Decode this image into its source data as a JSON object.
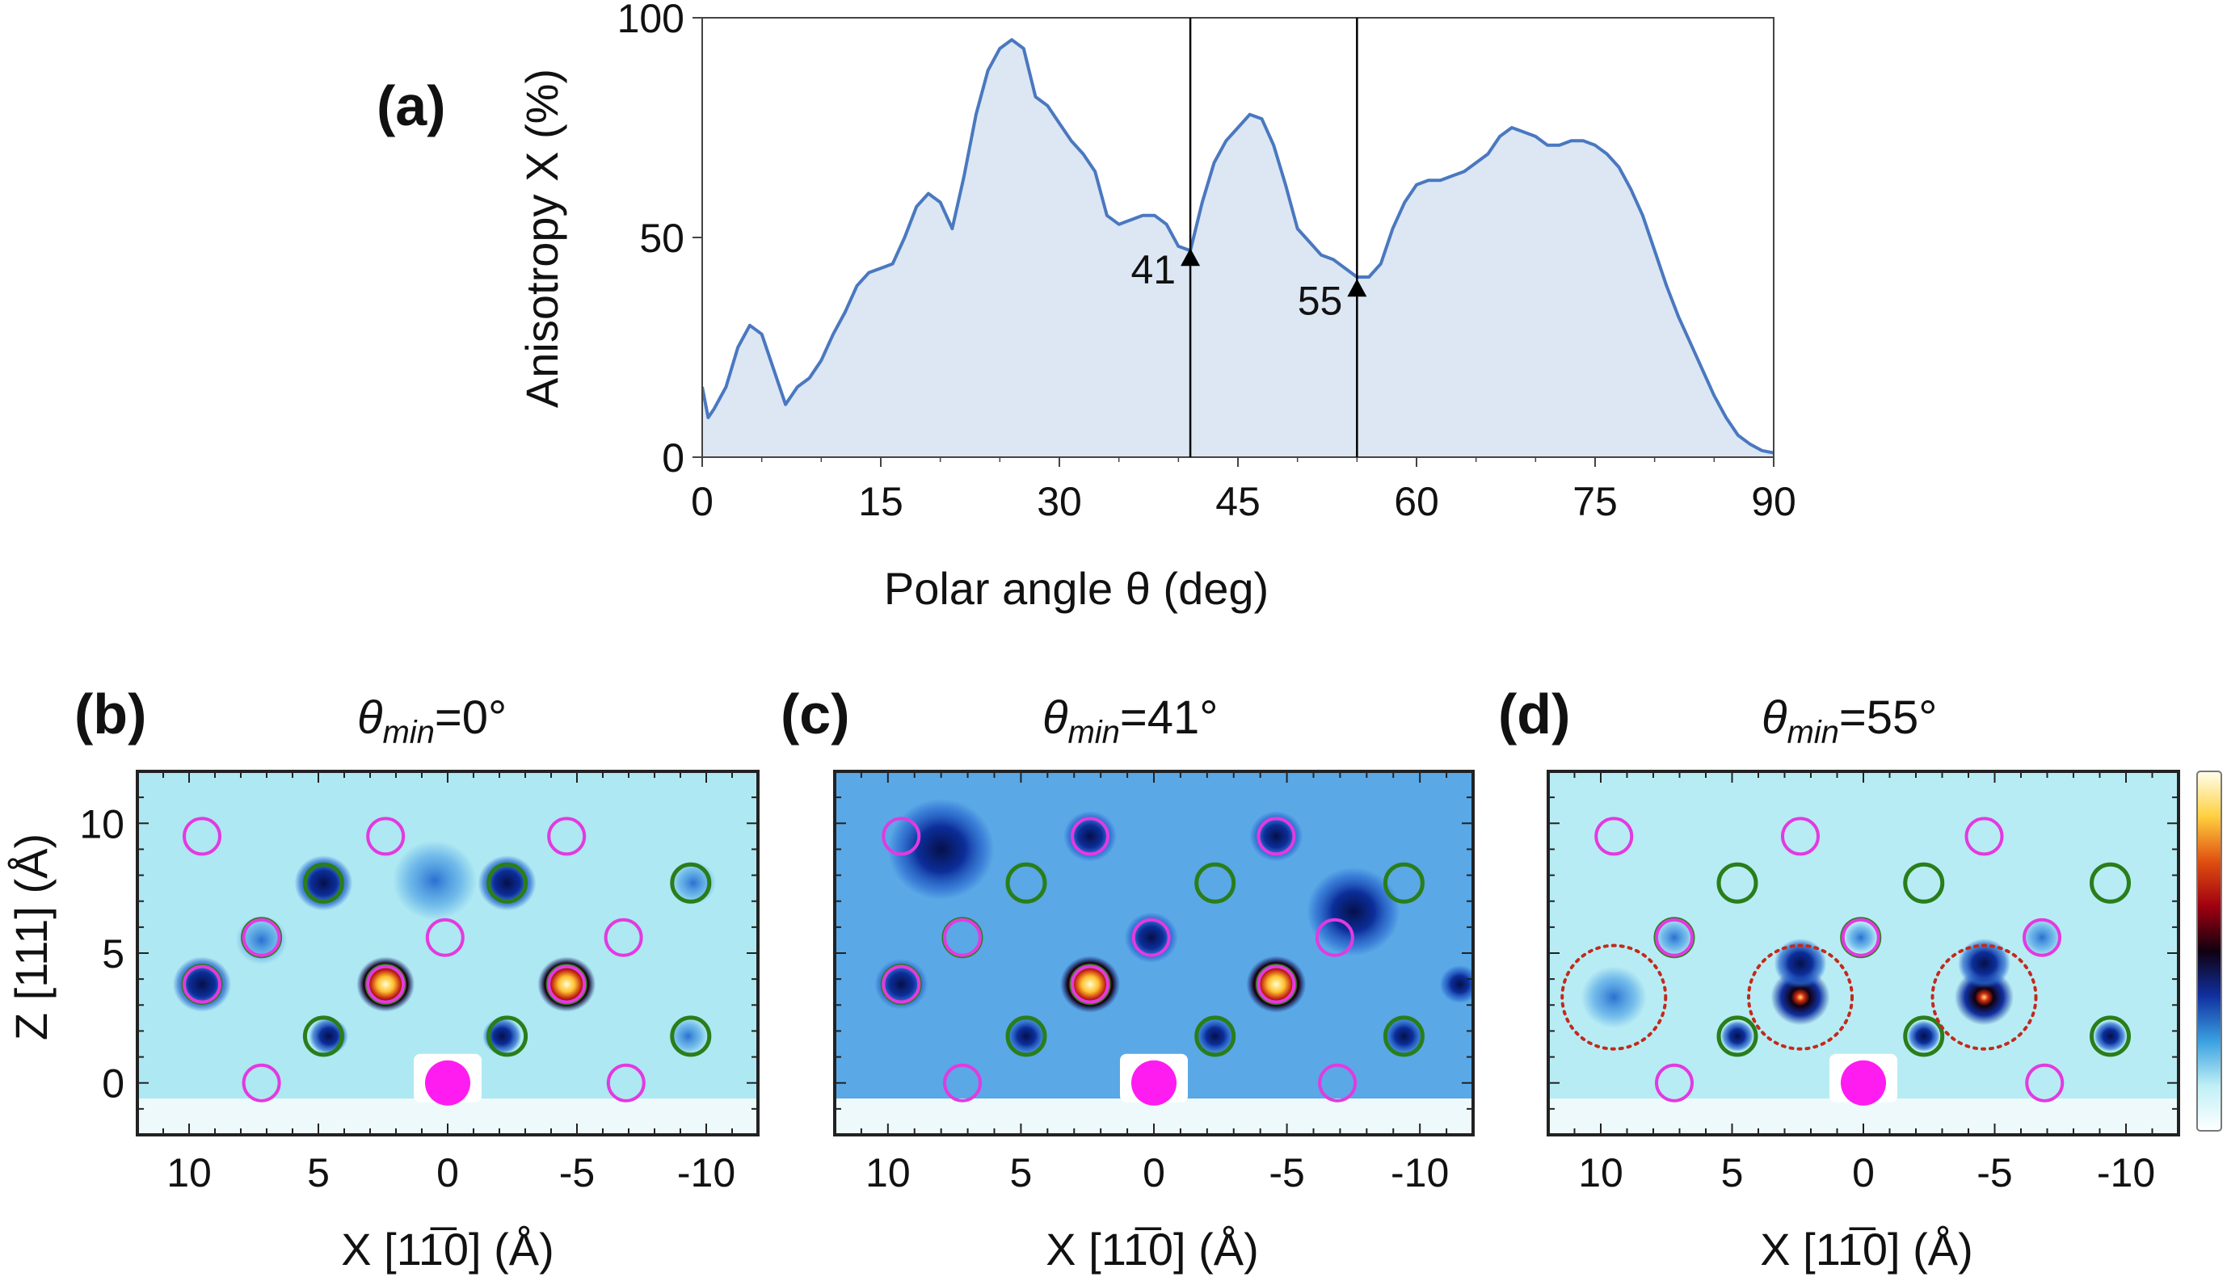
{
  "chart_data": [
    {
      "type": "area",
      "panel_label": "(a)",
      "xlabel": "Polar angle θ (deg)",
      "ylabel": "Anisotropy X (%)",
      "xlim": [
        0,
        90
      ],
      "ylim": [
        0,
        100
      ],
      "xticks": [
        "0",
        "15",
        "30",
        "45",
        "60",
        "75",
        "90"
      ],
      "yticks": [
        "0",
        "50",
        "100"
      ],
      "grid": false,
      "color": "#4a78c0",
      "fill": "#dce7f3",
      "x": [
        0,
        0.5,
        1,
        2,
        3,
        4,
        5,
        6,
        7,
        8,
        9,
        10,
        11,
        12,
        13,
        14,
        15,
        16,
        17,
        18,
        19,
        20,
        21,
        22,
        23,
        24,
        25,
        26,
        27,
        28,
        29,
        30,
        31,
        32,
        33,
        34,
        35,
        36,
        37,
        38,
        39,
        40,
        41,
        42,
        43,
        44,
        45,
        46,
        47,
        48,
        49,
        50,
        51,
        52,
        53,
        54,
        55,
        56,
        57,
        58,
        59,
        60,
        61,
        62,
        63,
        64,
        65,
        66,
        67,
        68,
        69,
        70,
        71,
        72,
        73,
        74,
        75,
        76,
        77,
        78,
        79,
        80,
        81,
        82,
        83,
        84,
        85,
        86,
        87,
        88,
        89,
        90
      ],
      "y": [
        16,
        9,
        11,
        16,
        25,
        30,
        28,
        20,
        12,
        16,
        18,
        22,
        28,
        33,
        39,
        42,
        43,
        44,
        50,
        57,
        60,
        58,
        52,
        64,
        78,
        88,
        93,
        95,
        93,
        82,
        80,
        76,
        72,
        69,
        65,
        55,
        53,
        54,
        55,
        55,
        53,
        48,
        47,
        58,
        67,
        72,
        75,
        78,
        77,
        71,
        62,
        52,
        49,
        46,
        45,
        43,
        41,
        41,
        44,
        52,
        58,
        62,
        63,
        63,
        64,
        65,
        67,
        69,
        73,
        75,
        74,
        73,
        71,
        71,
        72,
        72,
        71,
        69,
        66,
        61,
        55,
        47,
        39,
        32,
        26,
        20,
        14,
        9,
        5,
        3,
        1.5,
        1
      ],
      "annotations": [
        {
          "text": "41",
          "x": 41,
          "y": 45
        },
        {
          "text": "55",
          "x": 55,
          "y": 38
        }
      ]
    },
    {
      "type": "heatmap",
      "panel_label": "(b)",
      "title_symbol": "θ",
      "title_sub": "min",
      "title_value": "=0°",
      "xlabel": "X [11̅0] (Å)",
      "ylabel": "Z [111] (Å)",
      "xticks": [
        "10",
        "5",
        "0",
        "-5",
        "-10"
      ],
      "yticks": [
        "0",
        "5",
        "10"
      ],
      "xlim": [
        12,
        -12
      ],
      "ylim": [
        -2,
        12
      ],
      "background": "#aee8f2",
      "blobs": [
        {
          "x": 9.5,
          "z": 3.8,
          "r": 0.9,
          "kind": "dark"
        },
        {
          "x": 4.8,
          "z": 7.7,
          "r": 0.9,
          "kind": "dark"
        },
        {
          "x": 2.4,
          "z": 3.8,
          "r": 0.9,
          "kind": "hot"
        },
        {
          "x": -2.3,
          "z": 7.7,
          "r": 0.9,
          "kind": "dark"
        },
        {
          "x": -4.6,
          "z": 3.8,
          "r": 0.9,
          "kind": "hot"
        },
        {
          "x": 4.6,
          "z": 1.8,
          "r": 0.6,
          "kind": "dark"
        },
        {
          "x": -2.1,
          "z": 1.8,
          "r": 0.6,
          "kind": "dark"
        },
        {
          "x": 0.5,
          "z": 7.8,
          "r": 1.3,
          "kind": "mid"
        },
        {
          "x": -9.5,
          "z": 7.7,
          "r": 0.7,
          "kind": "mid"
        },
        {
          "x": 7.2,
          "z": 5.5,
          "r": 0.8,
          "kind": "mid"
        },
        {
          "x": -9.3,
          "z": 1.8,
          "r": 0.6,
          "kind": "mid"
        }
      ],
      "magenta_circles": [
        [
          9.5,
          9.5
        ],
        [
          2.4,
          9.5
        ],
        [
          -4.6,
          9.5
        ],
        [
          7.2,
          5.6
        ],
        [
          0.1,
          5.6
        ],
        [
          -6.8,
          5.6
        ],
        [
          9.5,
          3.8
        ],
        [
          2.4,
          3.8
        ],
        [
          -4.6,
          3.8
        ],
        [
          7.2,
          0
        ],
        [
          -6.9,
          0
        ]
      ],
      "green_circles": [
        [
          4.8,
          7.7
        ],
        [
          -2.3,
          7.7
        ],
        [
          -9.4,
          7.7
        ],
        [
          7.2,
          5.6
        ],
        [
          9.5,
          3.8
        ],
        [
          2.4,
          3.8
        ],
        [
          -4.6,
          3.8
        ],
        [
          4.8,
          1.8
        ],
        [
          -2.3,
          1.8
        ],
        [
          -9.4,
          1.8
        ]
      ],
      "dotted_circles": [],
      "emitter": [
        0,
        0
      ]
    },
    {
      "type": "heatmap",
      "panel_label": "(c)",
      "title_symbol": "θ",
      "title_sub": "min",
      "title_value": "=41°",
      "xlabel": "X [11̅0] (Å)",
      "ylabel": "",
      "xticks": [
        "10",
        "5",
        "0",
        "-5",
        "-10"
      ],
      "yticks": [],
      "xlim": [
        12,
        -12
      ],
      "ylim": [
        -2,
        12
      ],
      "background": "#5aa8e6",
      "blobs": [
        {
          "x": 9.5,
          "z": 3.8,
          "r": 0.8,
          "kind": "dark"
        },
        {
          "x": 2.4,
          "z": 3.8,
          "r": 0.9,
          "kind": "hot"
        },
        {
          "x": -4.6,
          "z": 3.8,
          "r": 0.9,
          "kind": "hot"
        },
        {
          "x": 2.4,
          "z": 9.5,
          "r": 0.8,
          "kind": "dark"
        },
        {
          "x": -4.6,
          "z": 9.5,
          "r": 0.8,
          "kind": "dark"
        },
        {
          "x": 8.0,
          "z": 9.0,
          "r": 1.6,
          "kind": "dark"
        },
        {
          "x": -7.5,
          "z": 6.6,
          "r": 1.4,
          "kind": "dark"
        },
        {
          "x": -11.5,
          "z": 3.8,
          "r": 0.6,
          "kind": "dark"
        },
        {
          "x": 0.1,
          "z": 5.6,
          "r": 0.8,
          "kind": "dark"
        },
        {
          "x": 4.8,
          "z": 1.8,
          "r": 0.6,
          "kind": "dark"
        },
        {
          "x": -2.3,
          "z": 1.8,
          "r": 0.6,
          "kind": "dark"
        },
        {
          "x": -9.4,
          "z": 1.8,
          "r": 0.6,
          "kind": "dark"
        }
      ],
      "magenta_circles": [
        [
          9.5,
          9.5
        ],
        [
          2.4,
          9.5
        ],
        [
          -4.6,
          9.5
        ],
        [
          7.2,
          5.6
        ],
        [
          0.1,
          5.6
        ],
        [
          -6.8,
          5.6
        ],
        [
          9.5,
          3.8
        ],
        [
          2.4,
          3.8
        ],
        [
          -4.6,
          3.8
        ],
        [
          7.2,
          0
        ],
        [
          -6.9,
          0
        ]
      ],
      "green_circles": [
        [
          4.8,
          7.7
        ],
        [
          -2.3,
          7.7
        ],
        [
          -9.4,
          7.7
        ],
        [
          7.2,
          5.6
        ],
        [
          9.5,
          3.8
        ],
        [
          2.4,
          3.8
        ],
        [
          -4.6,
          3.8
        ],
        [
          4.8,
          1.8
        ],
        [
          -2.3,
          1.8
        ],
        [
          -9.4,
          1.8
        ]
      ],
      "dotted_circles": [],
      "emitter": [
        0,
        0
      ]
    },
    {
      "type": "heatmap",
      "panel_label": "(d)",
      "title_symbol": "θ",
      "title_sub": "min",
      "title_value": "=55°",
      "xlabel": "X [11̅0] (Å)",
      "ylabel": "",
      "xticks": [
        "10",
        "5",
        "0",
        "-5",
        "-10"
      ],
      "yticks": [],
      "xlim": [
        12,
        -12
      ],
      "ylim": [
        -2,
        12
      ],
      "background": "#b8ecf4",
      "blobs": [
        {
          "x": 2.4,
          "z": 3.3,
          "r": 0.9,
          "kind": "hotsmall"
        },
        {
          "x": -4.6,
          "z": 3.3,
          "r": 0.9,
          "kind": "hotsmall"
        },
        {
          "x": 9.5,
          "z": 3.3,
          "r": 1.0,
          "kind": "mid"
        },
        {
          "x": 2.4,
          "z": 4.6,
          "r": 0.8,
          "kind": "dark"
        },
        {
          "x": -4.6,
          "z": 4.6,
          "r": 0.8,
          "kind": "dark"
        },
        {
          "x": 4.8,
          "z": 1.8,
          "r": 0.5,
          "kind": "dark"
        },
        {
          "x": -2.3,
          "z": 1.8,
          "r": 0.5,
          "kind": "dark"
        },
        {
          "x": -9.4,
          "z": 1.8,
          "r": 0.5,
          "kind": "dark"
        },
        {
          "x": 7.2,
          "z": 5.6,
          "r": 0.6,
          "kind": "mid"
        },
        {
          "x": 0.1,
          "z": 5.6,
          "r": 0.5,
          "kind": "mid"
        },
        {
          "x": -6.8,
          "z": 5.6,
          "r": 0.6,
          "kind": "mid"
        }
      ],
      "magenta_circles": [
        [
          9.5,
          9.5
        ],
        [
          2.4,
          9.5
        ],
        [
          -4.6,
          9.5
        ],
        [
          7.2,
          5.6
        ],
        [
          0.1,
          5.6
        ],
        [
          -6.8,
          5.6
        ],
        [
          7.2,
          0
        ],
        [
          -6.9,
          0
        ]
      ],
      "green_circles": [
        [
          4.8,
          7.7
        ],
        [
          -2.3,
          7.7
        ],
        [
          -9.4,
          7.7
        ],
        [
          7.2,
          5.6
        ],
        [
          0.1,
          5.6
        ],
        [
          4.8,
          1.8
        ],
        [
          -2.3,
          1.8
        ],
        [
          -9.4,
          1.8
        ]
      ],
      "dotted_circles": [
        [
          9.5,
          3.3
        ],
        [
          2.4,
          3.3
        ],
        [
          -4.6,
          3.3
        ]
      ],
      "emitter": [
        0,
        0
      ]
    }
  ],
  "colorbar": {
    "stops": [
      "#ffffee",
      "#ffd040",
      "#e05010",
      "#a00010",
      "#100010",
      "#1030a0",
      "#3aa0e0",
      "#bff0f6",
      "#ffffff"
    ]
  },
  "colors": {
    "magenta": "#e23ae0",
    "green": "#2a7e1a",
    "dotted": "#c22a1a",
    "emitter": "#ff1cf0"
  }
}
